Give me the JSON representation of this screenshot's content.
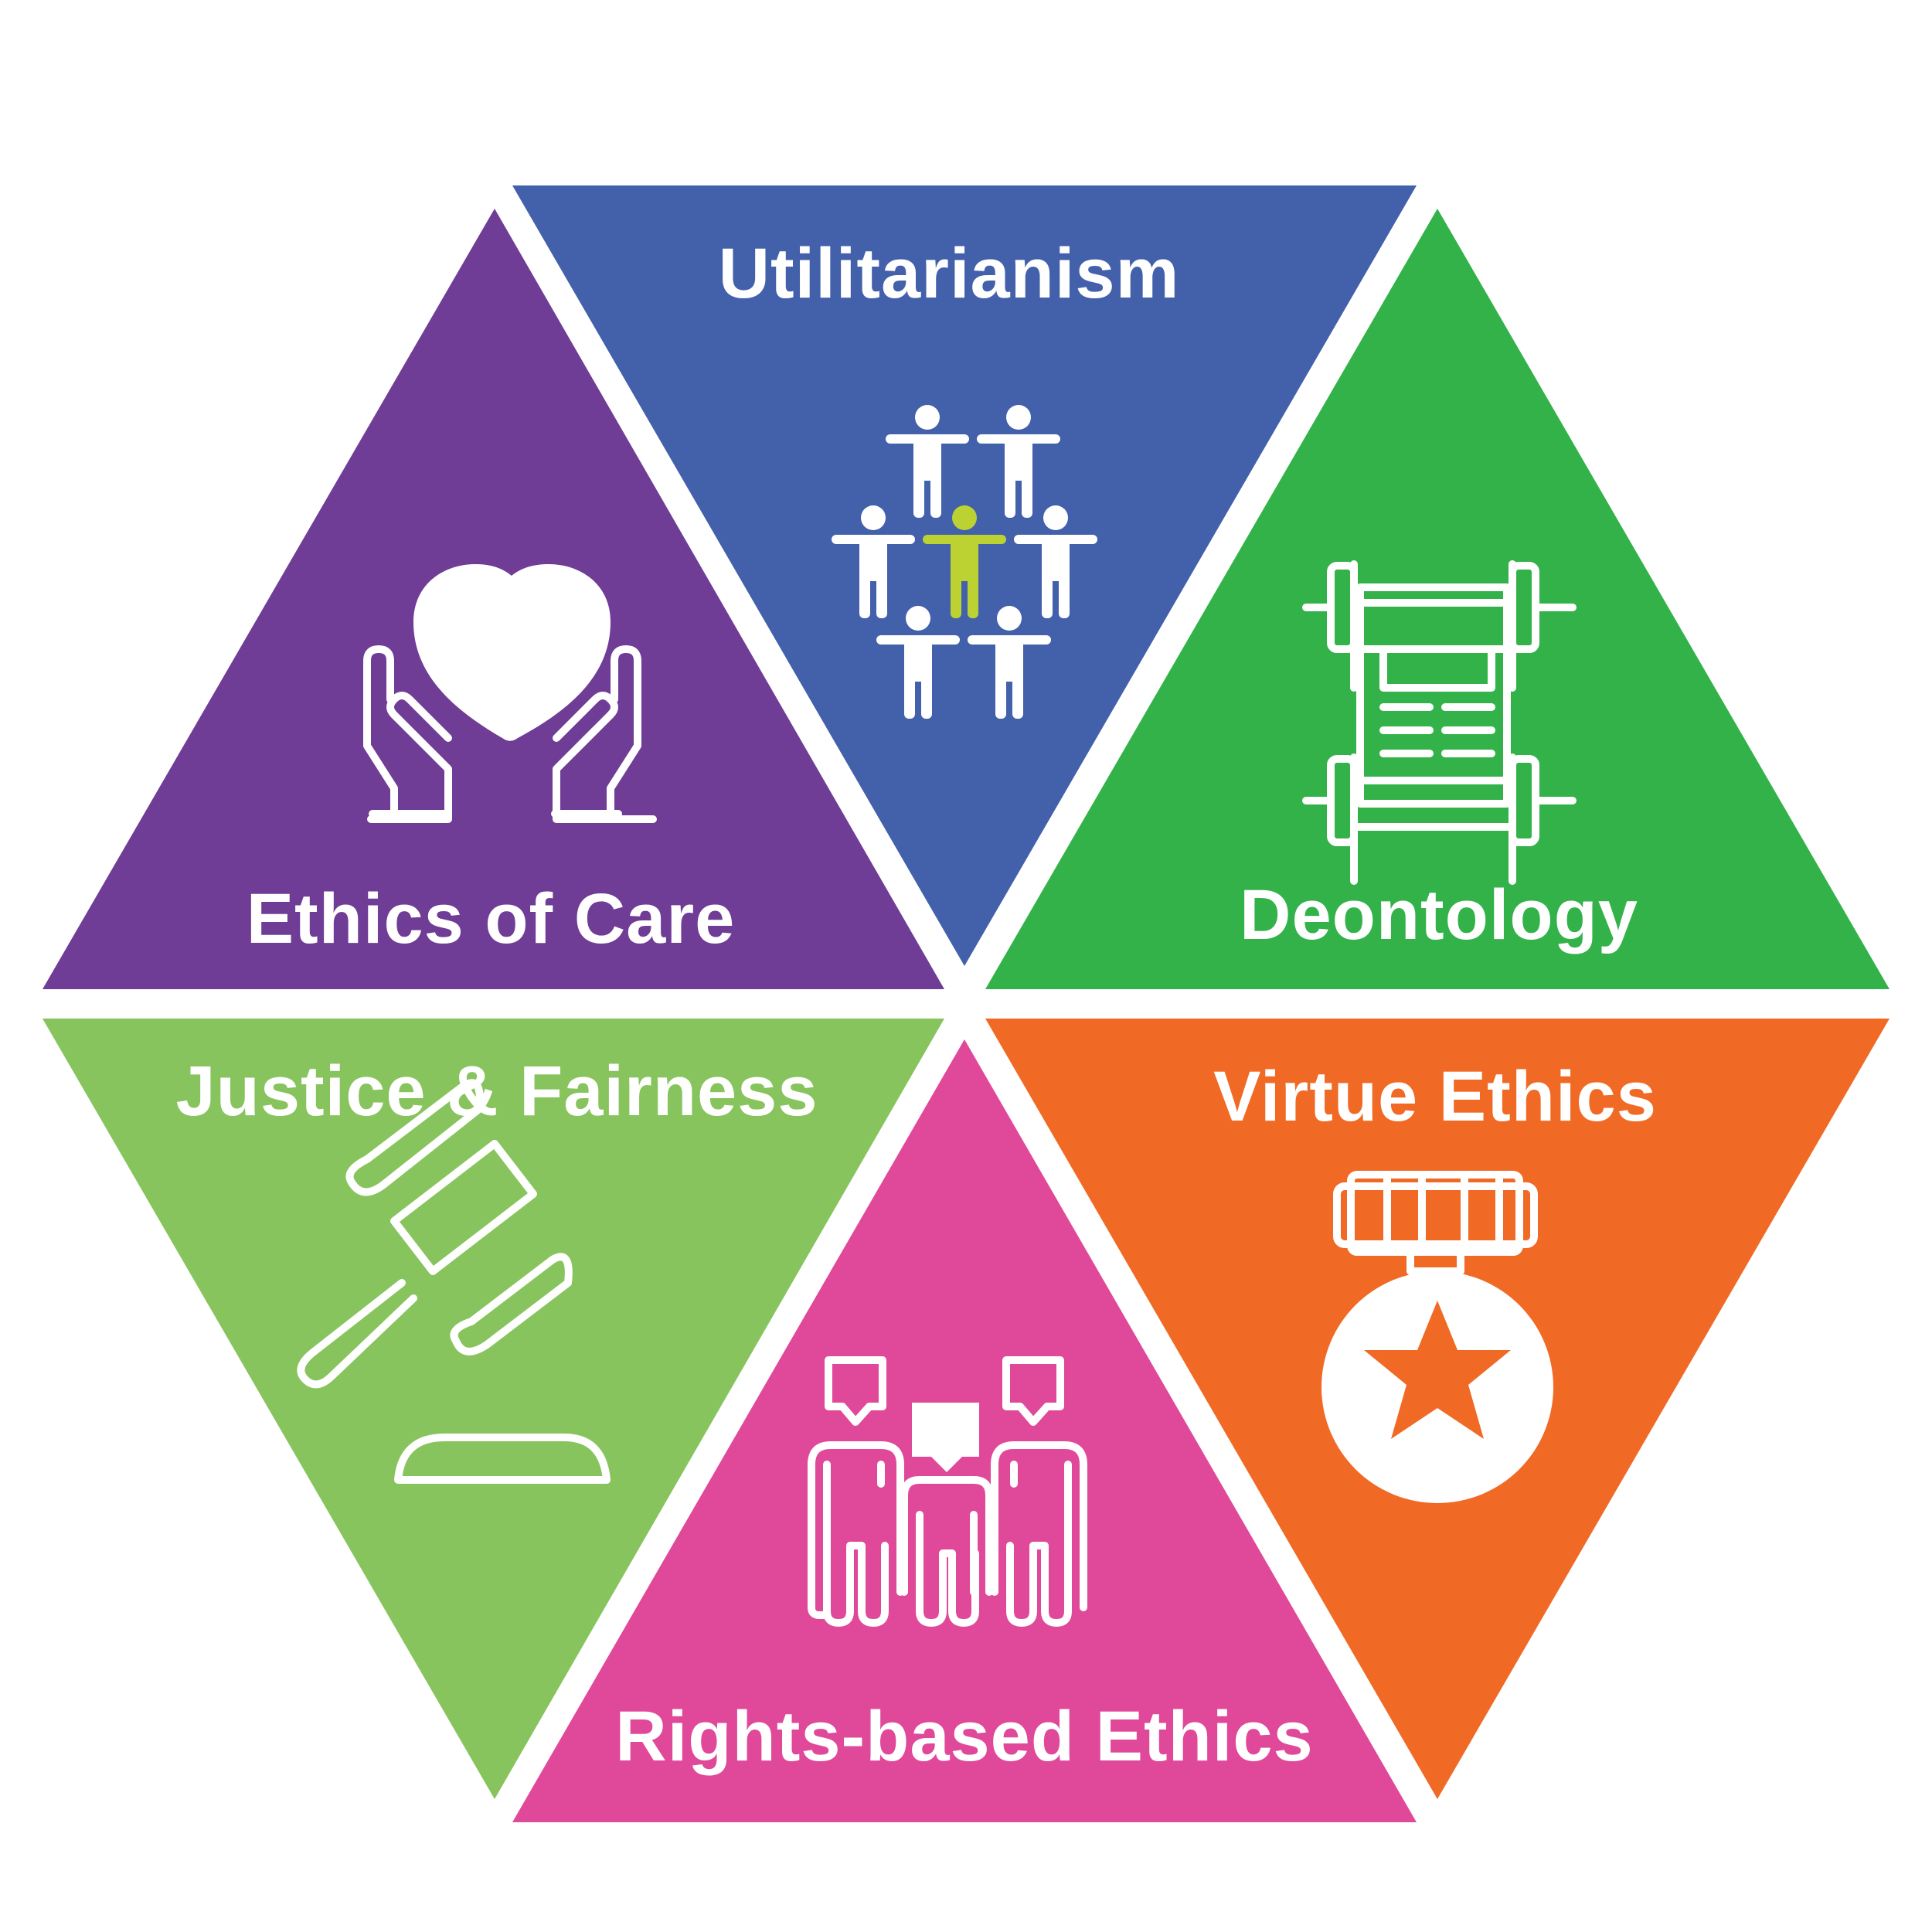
{
  "segments": [
    {
      "id": "utilitarianism",
      "label": "Utilitarianism",
      "color": "#4360AA",
      "icon": "people-group-icon"
    },
    {
      "id": "deontology",
      "label": "Deontology",
      "color": "#33B24A",
      "icon": "scroll-icon"
    },
    {
      "id": "virtue",
      "label": "Virtue Ethics",
      "color": "#F06A25",
      "icon": "medal-icon"
    },
    {
      "id": "rights",
      "label": "Rights-based Ethics",
      "color": "#E0489A",
      "icon": "people-speech-icon"
    },
    {
      "id": "justice",
      "label": "Justice & Fairness",
      "color": "#88C45E",
      "icon": "gavel-icon"
    },
    {
      "id": "care",
      "label": "Ethics of Care",
      "color": "#6F3C96",
      "icon": "heart-hands-icon"
    }
  ],
  "accent_person_color": "#BCD233"
}
